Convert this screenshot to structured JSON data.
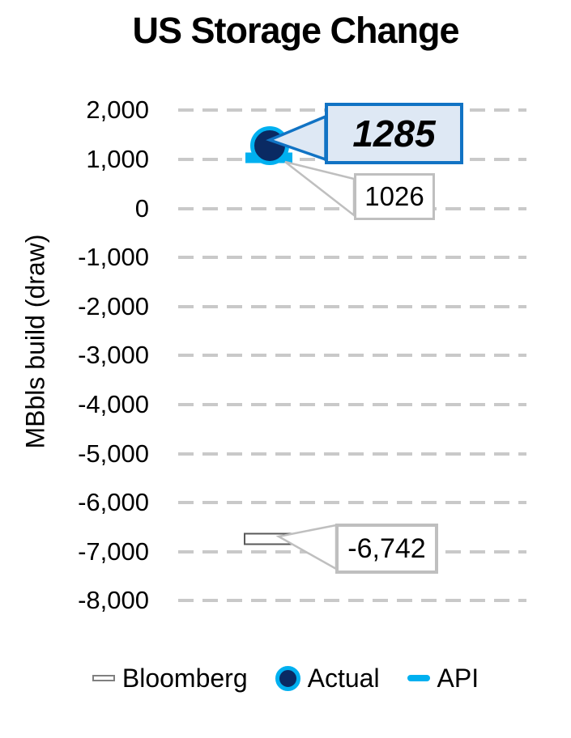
{
  "title": "US Storage Change",
  "chart_data": {
    "type": "scatter",
    "title": "US Storage Change",
    "ylabel": "MBbls build (draw)",
    "xlabel": "",
    "ylim": [
      -8000,
      2000
    ],
    "ytick_interval": 1000,
    "yticks": {
      "values": [
        2000,
        1000,
        0,
        -1000,
        -2000,
        -3000,
        -4000,
        -5000,
        -6000,
        -7000,
        -8000
      ],
      "labels": [
        "2,000",
        "1,000",
        "0",
        "-1,000",
        "-2,000",
        "-3,000",
        "-4,000",
        "-5,000",
        "-6,000",
        "-7,000",
        "-8,000"
      ]
    },
    "grid": {
      "direction": "horizontal",
      "style": "dashed",
      "color": "#C9C9C9"
    },
    "series": [
      {
        "name": "Bloomberg",
        "value": -6742,
        "data_label": "-6,742",
        "marker": "white-rectangle",
        "marker_color": "#ffffff",
        "marker_border": "#595959"
      },
      {
        "name": "Actual",
        "value": 1285,
        "data_label": "1285",
        "marker": "filled-circle",
        "marker_color": "#0A2A63",
        "marker_ring": "#00B0F0"
      },
      {
        "name": "API",
        "value": 1026,
        "data_label": "1026",
        "marker": "dash",
        "marker_color": "#00B0F0"
      }
    ],
    "annotations": [
      {
        "text": "1285",
        "series": "Actual",
        "style": "blue-callout"
      },
      {
        "text": "1026",
        "series": "API",
        "style": "gray-callout"
      },
      {
        "text": "-6,742",
        "series": "Bloomberg",
        "style": "gray-callout"
      }
    ],
    "legend_position": "bottom",
    "legend_items": [
      "Bloomberg",
      "Actual",
      "API"
    ]
  },
  "colors": {
    "navy": "#0A2A63",
    "cyan": "#00B0F0",
    "callout_blue_border": "#1173C4",
    "callout_blue_fill": "#DEE8F4",
    "callout_gray_border": "#BFBFBF",
    "gridline_gray": "#C9C9C9",
    "text": "#000000",
    "background": "#ffffff"
  }
}
